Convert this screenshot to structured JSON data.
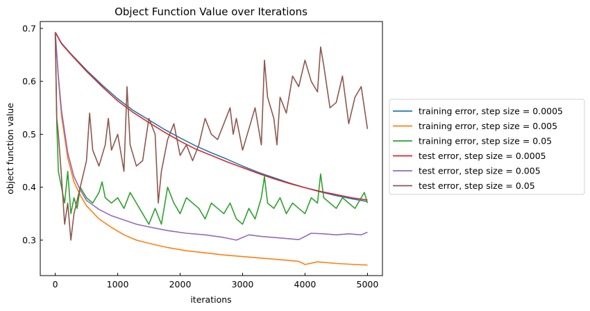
{
  "chart_data": {
    "type": "line",
    "title": "Object Function Value over Iterations",
    "xlabel": "iterations",
    "ylabel": "object function value",
    "xlim": [
      -240,
      5240
    ],
    "ylim": [
      0.233,
      0.713
    ],
    "xticks": [
      0,
      1000,
      2000,
      3000,
      4000,
      5000
    ],
    "yticks": [
      0.3,
      0.4,
      0.5,
      0.6,
      0.7
    ],
    "grid": false,
    "legend_position": "right (outside axes)",
    "series": [
      {
        "name": "training error, step size = 0.0005",
        "color": "#1f77b4",
        "x": [
          0,
          100,
          250,
          500,
          750,
          1000,
          1250,
          1500,
          1750,
          2000,
          2250,
          2500,
          2750,
          3000,
          3250,
          3500,
          3750,
          4000,
          4250,
          4500,
          4750,
          5000
        ],
        "y": [
          0.693,
          0.672,
          0.652,
          0.621,
          0.593,
          0.567,
          0.545,
          0.527,
          0.509,
          0.493,
          0.478,
          0.465,
          0.453,
          0.44,
          0.428,
          0.418,
          0.408,
          0.399,
          0.391,
          0.384,
          0.378,
          0.373
        ]
      },
      {
        "name": "training error, step size = 0.005",
        "color": "#ff7f0e",
        "x": [
          0,
          50,
          100,
          200,
          300,
          400,
          500,
          700,
          900,
          1100,
          1300,
          1500,
          1800,
          2100,
          2400,
          2700,
          3000,
          3300,
          3600,
          3900,
          4000,
          4200,
          4500,
          4800,
          5000
        ],
        "y": [
          0.693,
          0.605,
          0.535,
          0.455,
          0.41,
          0.385,
          0.365,
          0.34,
          0.324,
          0.31,
          0.3,
          0.294,
          0.286,
          0.28,
          0.276,
          0.272,
          0.269,
          0.266,
          0.263,
          0.26,
          0.254,
          0.259,
          0.256,
          0.254,
          0.253
        ]
      },
      {
        "name": "training error, step size = 0.05",
        "color": "#2ca02c",
        "x": [
          0,
          25,
          50,
          100,
          150,
          200,
          250,
          300,
          350,
          400,
          500,
          600,
          700,
          750,
          800,
          900,
          1000,
          1100,
          1200,
          1300,
          1400,
          1500,
          1600,
          1700,
          1800,
          1900,
          2000,
          2100,
          2200,
          2300,
          2400,
          2500,
          2600,
          2700,
          2800,
          2900,
          3000,
          3100,
          3200,
          3300,
          3350,
          3400,
          3500,
          3600,
          3700,
          3800,
          3900,
          4000,
          4100,
          4200,
          4250,
          4300,
          4400,
          4500,
          4600,
          4700,
          4800,
          4900,
          4950,
          5000
        ],
        "y": [
          0.693,
          0.52,
          0.43,
          0.4,
          0.37,
          0.43,
          0.35,
          0.38,
          0.36,
          0.4,
          0.38,
          0.37,
          0.39,
          0.41,
          0.38,
          0.37,
          0.38,
          0.36,
          0.39,
          0.37,
          0.35,
          0.33,
          0.36,
          0.33,
          0.4,
          0.37,
          0.35,
          0.38,
          0.37,
          0.36,
          0.34,
          0.37,
          0.36,
          0.35,
          0.37,
          0.34,
          0.33,
          0.36,
          0.34,
          0.38,
          0.42,
          0.37,
          0.36,
          0.38,
          0.35,
          0.37,
          0.36,
          0.35,
          0.38,
          0.37,
          0.425,
          0.38,
          0.37,
          0.36,
          0.38,
          0.37,
          0.36,
          0.38,
          0.39,
          0.37
        ]
      },
      {
        "name": "test error, step size = 0.0005",
        "color": "#d62728",
        "x": [
          0,
          100,
          250,
          500,
          750,
          1000,
          1250,
          1500,
          1750,
          2000,
          2250,
          2500,
          2750,
          3000,
          3250,
          3500,
          3750,
          4000,
          4250,
          4500,
          4750,
          5000
        ],
        "y": [
          0.693,
          0.671,
          0.651,
          0.619,
          0.59,
          0.563,
          0.541,
          0.522,
          0.504,
          0.487,
          0.472,
          0.46,
          0.448,
          0.437,
          0.426,
          0.416,
          0.407,
          0.399,
          0.392,
          0.386,
          0.38,
          0.376
        ]
      },
      {
        "name": "test error, step size = 0.005",
        "color": "#9467bd",
        "x": [
          0,
          50,
          100,
          200,
          300,
          400,
          500,
          700,
          900,
          1100,
          1300,
          1500,
          1800,
          2100,
          2400,
          2700,
          2900,
          3100,
          3300,
          3500,
          3700,
          3900,
          4100,
          4300,
          4500,
          4700,
          4900,
          5000
        ],
        "y": [
          0.693,
          0.61,
          0.545,
          0.465,
          0.42,
          0.395,
          0.375,
          0.358,
          0.346,
          0.338,
          0.33,
          0.325,
          0.318,
          0.313,
          0.31,
          0.305,
          0.3,
          0.31,
          0.307,
          0.305,
          0.303,
          0.301,
          0.313,
          0.312,
          0.31,
          0.312,
          0.31,
          0.315
        ]
      },
      {
        "name": "test error, step size = 0.05",
        "color": "#8c564b",
        "x": [
          0,
          25,
          50,
          100,
          150,
          200,
          250,
          300,
          400,
          500,
          550,
          600,
          700,
          800,
          850,
          900,
          1000,
          1100,
          1150,
          1200,
          1300,
          1400,
          1500,
          1600,
          1650,
          1700,
          1800,
          1900,
          2000,
          2100,
          2200,
          2300,
          2400,
          2500,
          2600,
          2700,
          2800,
          2850,
          2900,
          3000,
          3100,
          3200,
          3300,
          3350,
          3400,
          3500,
          3550,
          3600,
          3700,
          3800,
          3900,
          4000,
          4100,
          4200,
          4250,
          4300,
          4400,
          4500,
          4600,
          4700,
          4800,
          4900,
          5000
        ],
        "y": [
          0.69,
          0.53,
          0.5,
          0.42,
          0.33,
          0.37,
          0.3,
          0.35,
          0.4,
          0.45,
          0.54,
          0.47,
          0.44,
          0.48,
          0.53,
          0.47,
          0.5,
          0.43,
          0.59,
          0.48,
          0.44,
          0.45,
          0.53,
          0.5,
          0.37,
          0.43,
          0.49,
          0.52,
          0.46,
          0.48,
          0.45,
          0.48,
          0.53,
          0.5,
          0.49,
          0.52,
          0.55,
          0.5,
          0.53,
          0.47,
          0.51,
          0.55,
          0.48,
          0.64,
          0.57,
          0.53,
          0.48,
          0.57,
          0.54,
          0.61,
          0.59,
          0.64,
          0.6,
          0.58,
          0.665,
          0.63,
          0.55,
          0.56,
          0.61,
          0.52,
          0.57,
          0.59,
          0.51
        ]
      }
    ]
  }
}
